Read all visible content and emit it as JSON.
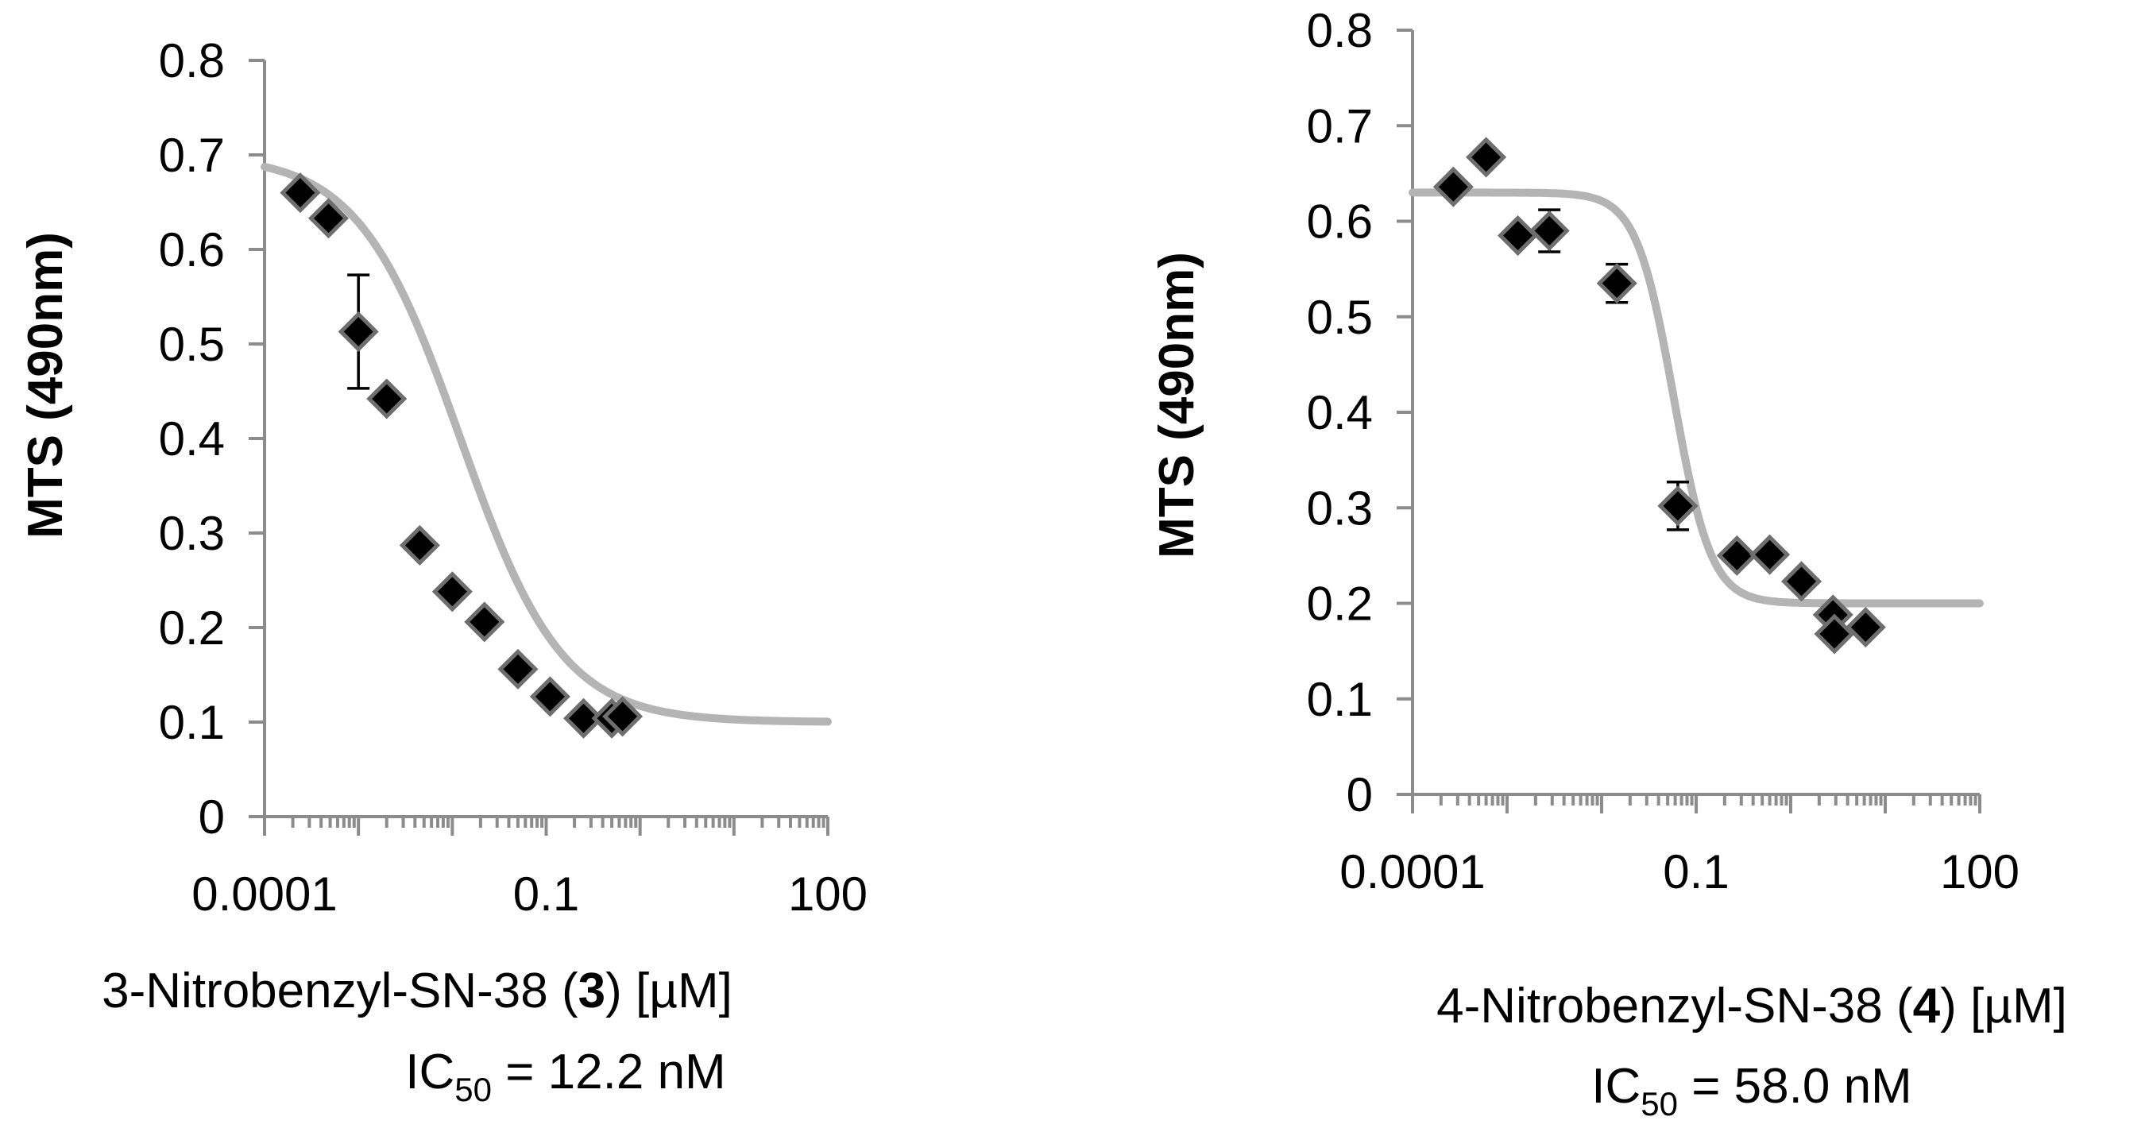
{
  "chart_data": [
    {
      "type": "scatter",
      "id": "left",
      "xscale": "log",
      "xlim": [
        0.0001,
        100
      ],
      "ylim": [
        0,
        0.8
      ],
      "x_ticks": [
        0.0001,
        0.1,
        100
      ],
      "x_tick_labels": [
        "0.0001",
        "0.1",
        "100"
      ],
      "y_ticks": [
        0,
        0.1,
        0.2,
        0.3,
        0.4,
        0.5,
        0.6,
        0.7,
        0.8
      ],
      "y_tick_labels": [
        "0",
        "0.1",
        "0.2",
        "0.3",
        "0.4",
        "0.5",
        "0.6",
        "0.7",
        "0.8"
      ],
      "ylabel": "MTS (490nm)",
      "xlabel_prefix": "3-Nitrobenzyl-SN-38 (",
      "xlabel_bold": "3",
      "xlabel_suffix": ") [µM]",
      "ic50_main": "IC",
      "ic50_sub": "50",
      "ic50_value": " = 12.2 nM",
      "points": [
        {
          "x": 0.00024,
          "y": 0.66
        },
        {
          "x": 0.00048,
          "y": 0.633
        },
        {
          "x": 0.001,
          "y": 0.513,
          "err": 0.06
        },
        {
          "x": 0.002,
          "y": 0.442
        },
        {
          "x": 0.0045,
          "y": 0.287
        },
        {
          "x": 0.01,
          "y": 0.238
        },
        {
          "x": 0.022,
          "y": 0.206
        },
        {
          "x": 0.05,
          "y": 0.156
        },
        {
          "x": 0.11,
          "y": 0.127
        },
        {
          "x": 0.25,
          "y": 0.104
        },
        {
          "x": 0.5,
          "y": 0.104
        },
        {
          "x": 0.65,
          "y": 0.106
        }
      ],
      "fit": {
        "bottom": 0.1,
        "top": 0.7,
        "ec50": 0.0122,
        "hill": 0.8
      }
    },
    {
      "type": "scatter",
      "id": "right",
      "xscale": "log",
      "xlim": [
        0.0001,
        100
      ],
      "ylim": [
        0,
        0.8
      ],
      "x_ticks": [
        0.0001,
        0.1,
        100
      ],
      "x_tick_labels": [
        "0.0001",
        "0.1",
        "100"
      ],
      "y_ticks": [
        0,
        0.1,
        0.2,
        0.3,
        0.4,
        0.5,
        0.6,
        0.7,
        0.8
      ],
      "y_tick_labels": [
        "0",
        "0.1",
        "0.2",
        "0.3",
        "0.4",
        "0.5",
        "0.6",
        "0.7",
        "0.8"
      ],
      "ylabel": "MTS (490nm)",
      "xlabel_prefix": "4-Nitrobenzyl-SN-38 (",
      "xlabel_bold": "4",
      "xlabel_suffix": ") [µM]",
      "ic50_main": "IC",
      "ic50_sub": "50",
      "ic50_value": " = 58.0 nM",
      "points": [
        {
          "x": 0.00027,
          "y": 0.636
        },
        {
          "x": 0.0006,
          "y": 0.667
        },
        {
          "x": 0.0013,
          "y": 0.585
        },
        {
          "x": 0.0028,
          "y": 0.59,
          "err": 0.022
        },
        {
          "x": 0.0145,
          "y": 0.535,
          "err": 0.02
        },
        {
          "x": 0.064,
          "y": 0.302,
          "err": 0.025
        },
        {
          "x": 0.27,
          "y": 0.25
        },
        {
          "x": 0.6,
          "y": 0.251
        },
        {
          "x": 1.3,
          "y": 0.223
        },
        {
          "x": 2.8,
          "y": 0.188
        },
        {
          "x": 2.9,
          "y": 0.168
        },
        {
          "x": 6.2,
          "y": 0.175
        }
      ],
      "fit": {
        "bottom": 0.2,
        "top": 0.63,
        "ec50": 0.058,
        "hill": 2.2
      }
    }
  ]
}
